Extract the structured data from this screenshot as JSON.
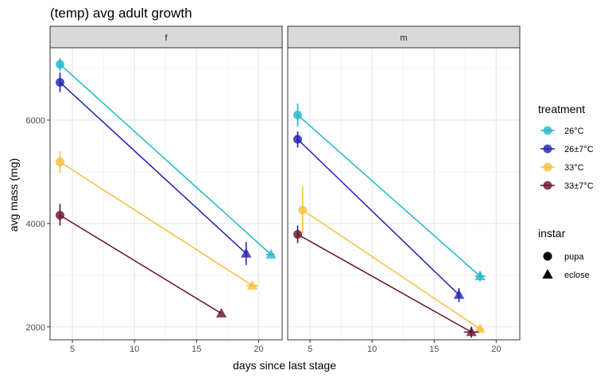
{
  "chart_data": {
    "type": "scatter",
    "title": "(temp) avg adult growth",
    "xlabel": "days since last stage",
    "ylabel": "avg mass (mg)",
    "xlim": [
      3.2,
      21.9
    ],
    "ylim": [
      1750,
      7400
    ],
    "x_ticks": [
      5,
      10,
      15,
      20
    ],
    "y_ticks": [
      2000,
      4000,
      6000
    ],
    "grid": true,
    "legend_position": "right",
    "facets": [
      {
        "label": "f",
        "series": [
          {
            "name": "26°C",
            "points": [
              {
                "x": 4.0,
                "y": 7080,
                "instar": "pupa",
                "yerr": [
                  6950,
                  7200
                ]
              },
              {
                "x": 21.0,
                "y": 3400,
                "instar": "eclose",
                "xerr": [
                  20.6,
                  21.3
                ]
              }
            ]
          },
          {
            "name": "26±7°C",
            "points": [
              {
                "x": 4.0,
                "y": 6730,
                "instar": "pupa",
                "yerr": [
                  6540,
                  6920
                ]
              },
              {
                "x": 19.0,
                "y": 3420,
                "instar": "eclose",
                "yerr": [
                  3200,
                  3640
                ]
              }
            ]
          },
          {
            "name": "33°C",
            "points": [
              {
                "x": 4.0,
                "y": 5190,
                "instar": "pupa",
                "yerr": [
                  4980,
                  5400
                ]
              },
              {
                "x": 19.5,
                "y": 2800,
                "instar": "eclose",
                "xerr": [
                  19.0,
                  20.0
                ]
              }
            ]
          },
          {
            "name": "33±7°C",
            "points": [
              {
                "x": 4.0,
                "y": 4160,
                "instar": "pupa",
                "yerr": [
                  3960,
                  4380
                ]
              },
              {
                "x": 17.0,
                "y": 2260,
                "instar": "eclose"
              }
            ]
          }
        ]
      },
      {
        "label": "m",
        "series": [
          {
            "name": "26°C",
            "points": [
              {
                "x": 4.0,
                "y": 6100,
                "instar": "pupa",
                "yerr": [
                  5880,
                  6320
                ]
              },
              {
                "x": 18.7,
                "y": 2980,
                "instar": "eclose",
                "xerr": [
                  18.3,
                  19.1
                ],
                "yerr": [
                  2880,
                  3080
                ]
              }
            ]
          },
          {
            "name": "26±7°C",
            "points": [
              {
                "x": 4.0,
                "y": 5630,
                "instar": "pupa",
                "yerr": [
                  5470,
                  5780
                ]
              },
              {
                "x": 17.0,
                "y": 2620,
                "instar": "eclose",
                "yerr": [
                  2480,
                  2750
                ]
              }
            ]
          },
          {
            "name": "33°C",
            "points": [
              {
                "x": 4.4,
                "y": 4260,
                "instar": "pupa",
                "yerr": [
                  3800,
                  4720
                ]
              },
              {
                "x": 18.7,
                "y": 1960,
                "instar": "eclose",
                "xerr": [
                  18.4,
                  19.0
                ]
              }
            ]
          },
          {
            "name": "33±7°C",
            "points": [
              {
                "x": 4.0,
                "y": 3790,
                "instar": "pupa",
                "yerr": [
                  3620,
                  3960
                ]
              },
              {
                "x": 18.0,
                "y": 1900,
                "instar": "eclose",
                "xerr": [
                  17.4,
                  18.6
                ],
                "yerr": [
                  1790,
                  2000
                ]
              }
            ]
          }
        ]
      }
    ],
    "legend": {
      "treatment_title": "treatment",
      "treatments": [
        {
          "name": "26°C",
          "color": "#20b8c8"
        },
        {
          "name": "26±7°C",
          "color": "#2020b0"
        },
        {
          "name": "33°C",
          "color": "#f7bd3c"
        },
        {
          "name": "33±7°C",
          "color": "#6a0f2f"
        }
      ],
      "instar_title": "instar",
      "instars": [
        {
          "name": "pupa",
          "shape": "circle"
        },
        {
          "name": "eclose",
          "shape": "triangle"
        }
      ]
    }
  }
}
